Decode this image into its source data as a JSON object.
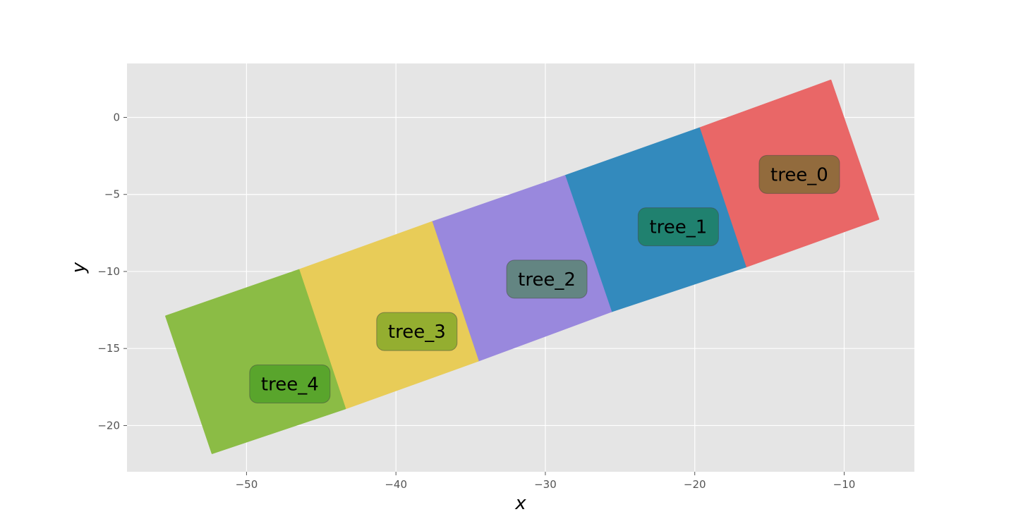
{
  "chart_data": {
    "type": "scatter",
    "title": "",
    "xlabel": "x",
    "ylabel": "y",
    "xlim": [
      -58.0,
      -5.3
    ],
    "ylim": [
      -23.0,
      3.5
    ],
    "grid": true,
    "style": "ggplot",
    "background_color": "#e5e5e5",
    "grid_color": "#ffffff",
    "xticks": [
      -50,
      -40,
      -30,
      -20,
      -10
    ],
    "yticks": [
      0,
      -5,
      -10,
      -15,
      -20
    ],
    "xtick_labels": [
      "−50",
      "−40",
      "−30",
      "−20",
      "−10"
    ],
    "ytick_labels": [
      "0",
      "−5",
      "−10",
      "−15",
      "−20"
    ],
    "series": [
      {
        "name": "tree_0",
        "color": "#e96767",
        "label_color": "#8a6b3a",
        "corners": [
          [
            -19.7,
            -0.7
          ],
          [
            -10.9,
            2.4
          ],
          [
            -7.7,
            -6.6
          ],
          [
            -16.6,
            -9.7
          ]
        ],
        "label_at": [
          -13.0,
          -3.7
        ]
      },
      {
        "name": "tree_1",
        "color": "#338abd",
        "label_color": "#1e8068",
        "corners": [
          [
            -28.7,
            -3.8
          ],
          [
            -19.7,
            -0.7
          ],
          [
            -16.6,
            -9.7
          ],
          [
            -25.6,
            -12.6
          ]
        ],
        "label_at": [
          -21.1,
          -7.1
        ]
      },
      {
        "name": "tree_2",
        "color": "#9988dd",
        "label_color": "#5e8479",
        "corners": [
          [
            -37.6,
            -6.8
          ],
          [
            -28.7,
            -3.8
          ],
          [
            -25.6,
            -12.6
          ],
          [
            -34.5,
            -15.8
          ]
        ],
        "label_at": [
          -29.9,
          -10.5
        ]
      },
      {
        "name": "tree_3",
        "color": "#e8cc58",
        "label_color": "#8cab2d",
        "corners": [
          [
            -46.5,
            -9.9
          ],
          [
            -37.6,
            -6.8
          ],
          [
            -34.5,
            -15.8
          ],
          [
            -43.4,
            -18.9
          ]
        ],
        "label_at": [
          -38.6,
          -13.9
        ]
      },
      {
        "name": "tree_4",
        "color": "#8bbc45",
        "label_color": "#55a32a",
        "corners": [
          [
            -55.4,
            -12.9
          ],
          [
            -46.5,
            -9.9
          ],
          [
            -43.4,
            -18.9
          ],
          [
            -52.3,
            -21.8
          ]
        ],
        "label_at": [
          -47.1,
          -17.3
        ]
      }
    ]
  }
}
